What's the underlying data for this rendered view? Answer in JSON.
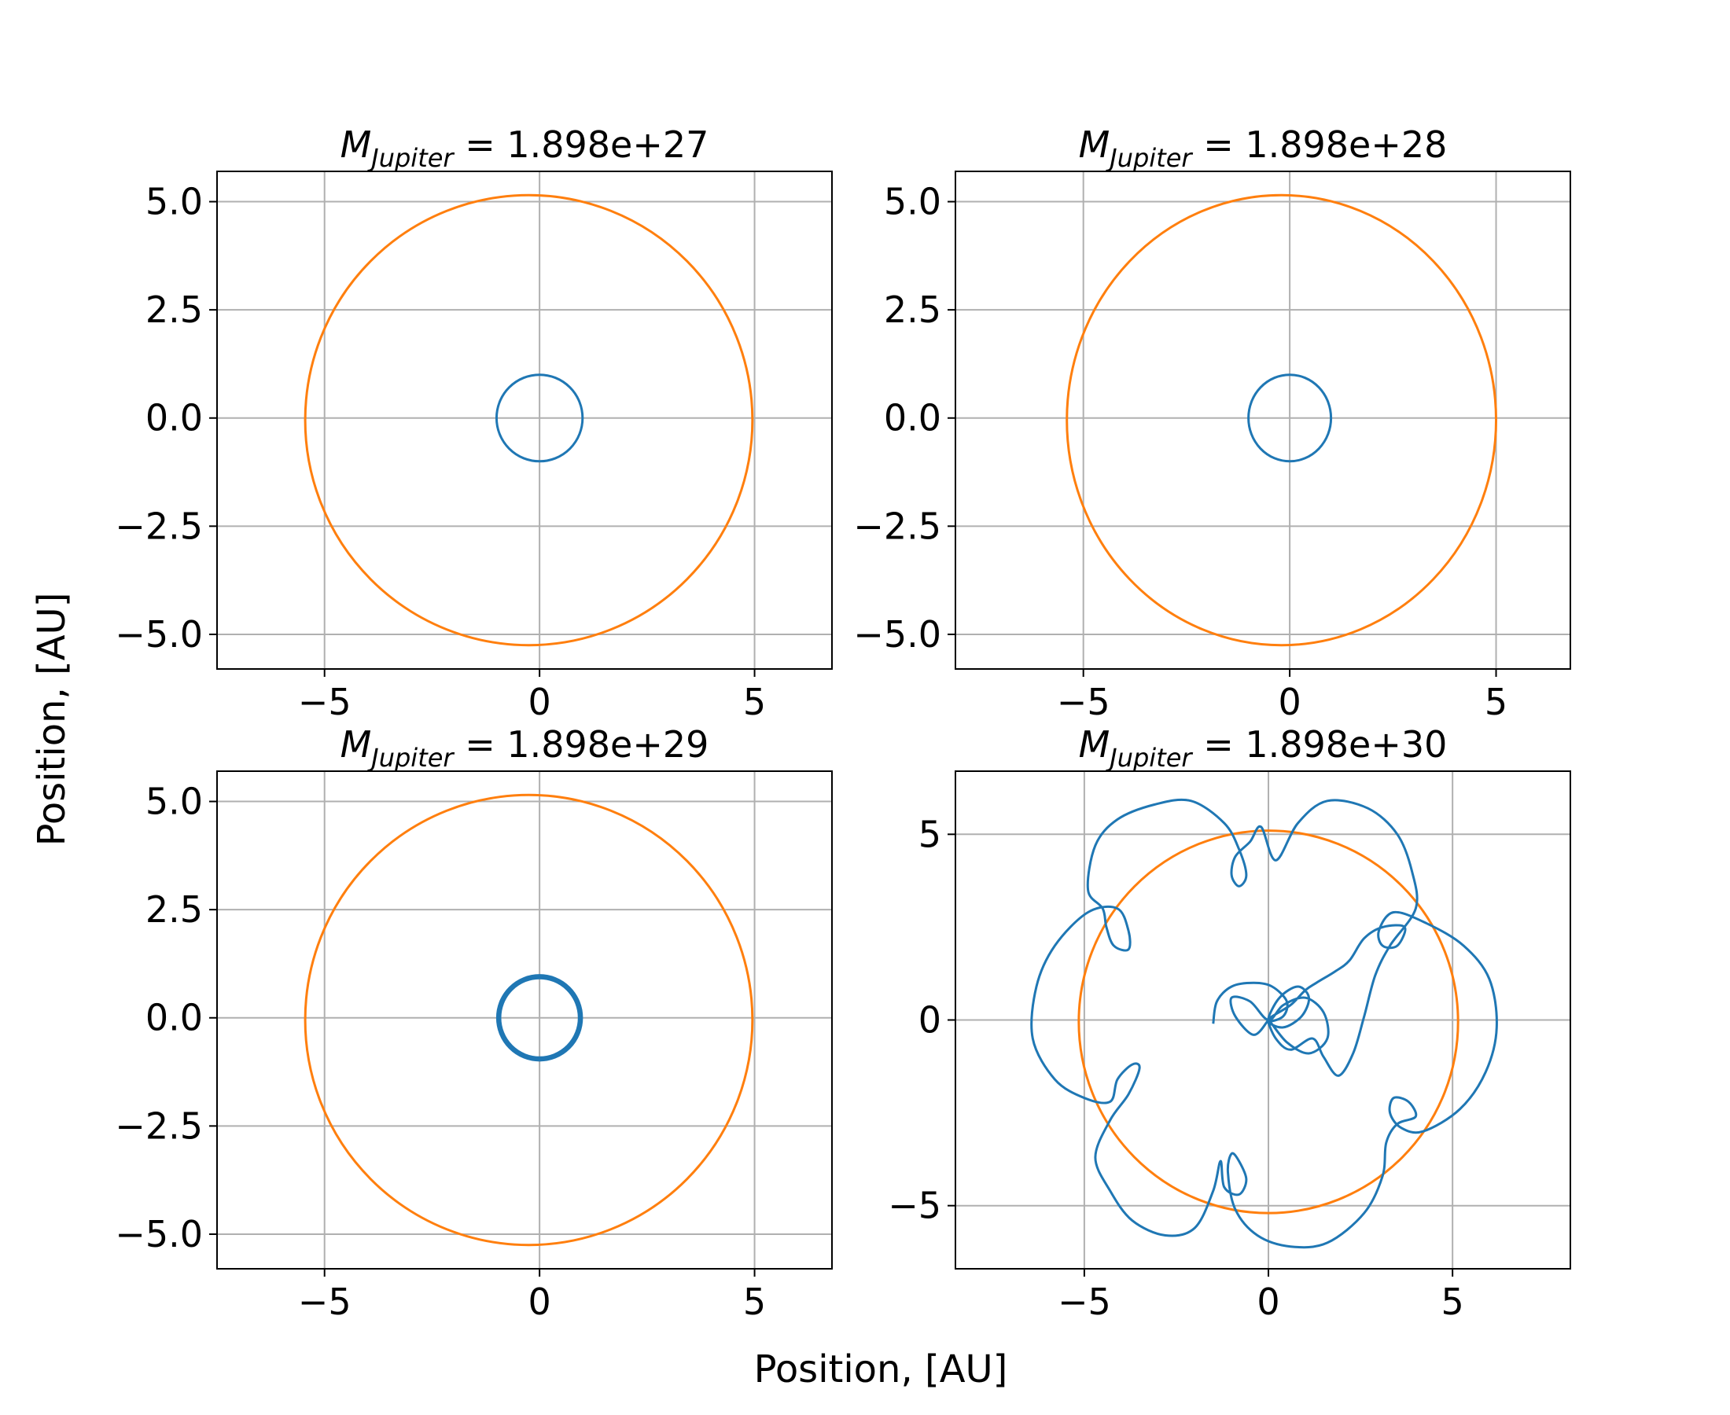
{
  "figure": {
    "xlabel": "Position, [AU]",
    "ylabel": "Position, [AU]",
    "title_symbol": "M",
    "title_subscript": "Jupiter",
    "colors": {
      "earth": "#1f77b4",
      "jupiter": "#ff7f0e",
      "grid": "#b0b0b0"
    }
  },
  "chart_data": [
    {
      "type": "line",
      "title_value": "= 1.898e+27",
      "xlim": [
        -7.5,
        6.8
      ],
      "ylim": [
        -5.8,
        5.7
      ],
      "xticks": [
        -5,
        0,
        5
      ],
      "xtick_labels": [
        "−5",
        "0",
        "5"
      ],
      "yticks": [
        5,
        2.5,
        0,
        -2.5,
        -5
      ],
      "ytick_labels": [
        "5.0",
        "2.5",
        "0.0",
        "−2.5",
        "−5.0"
      ],
      "grid": true,
      "series": [
        {
          "role": "jupiter",
          "shape": "circle",
          "center": [
            -0.25,
            -0.05
          ],
          "radius": 5.2
        },
        {
          "role": "earth",
          "shape": "circle",
          "center": [
            0,
            0
          ],
          "radius": 1.0
        }
      ]
    },
    {
      "type": "line",
      "title_value": "= 1.898e+28",
      "xlim": [
        -8.1,
        6.8
      ],
      "ylim": [
        -5.8,
        5.7
      ],
      "xticks": [
        -5,
        0,
        5
      ],
      "xtick_labels": [
        "−5",
        "0",
        "5"
      ],
      "yticks": [
        5,
        2.5,
        0,
        -2.5,
        -5
      ],
      "ytick_labels": [
        "5.0",
        "2.5",
        "0.0",
        "−2.5",
        "−5.0"
      ],
      "grid": true,
      "series": [
        {
          "role": "jupiter",
          "shape": "circle",
          "center": [
            -0.2,
            -0.05
          ],
          "radius": 5.2
        },
        {
          "role": "earth",
          "shape": "circle",
          "center": [
            0,
            0
          ],
          "radius": 1.0,
          "width_band": 0.05
        }
      ]
    },
    {
      "type": "line",
      "title_value": "= 1.898e+29",
      "xlim": [
        -7.5,
        6.8
      ],
      "ylim": [
        -5.8,
        5.7
      ],
      "xticks": [
        -5,
        0,
        5
      ],
      "xtick_labels": [
        "−5",
        "0",
        "5"
      ],
      "yticks": [
        5,
        2.5,
        0,
        -2.5,
        -5
      ],
      "ytick_labels": [
        "5.0",
        "2.5",
        "0.0",
        "−2.5",
        "−5.0"
      ],
      "grid": true,
      "series": [
        {
          "role": "jupiter",
          "shape": "circle",
          "center": [
            -0.25,
            -0.05
          ],
          "radius": 5.2
        },
        {
          "role": "earth",
          "shape": "circle",
          "center": [
            0,
            0
          ],
          "radius": 0.95,
          "width_band": 0.12
        }
      ]
    },
    {
      "type": "line",
      "title_value": "= 1.898e+30",
      "xlim": [
        -8.5,
        8.2
      ],
      "ylim": [
        -6.7,
        6.7
      ],
      "xticks": [
        -5,
        0,
        5
      ],
      "xtick_labels": [
        "−5",
        "0",
        "5"
      ],
      "yticks": [
        5,
        0,
        -5
      ],
      "ytick_labels": [
        "5",
        "0",
        "−5"
      ],
      "grid": true,
      "series": [
        {
          "role": "jupiter",
          "shape": "circle",
          "center": [
            0,
            -0.05
          ],
          "radius": 5.15
        },
        {
          "role": "earth",
          "shape": "path",
          "points": [
            [
              -1.5,
              -0.1
            ],
            [
              -1.4,
              0.5
            ],
            [
              -1.0,
              0.9
            ],
            [
              -0.4,
              1.0
            ],
            [
              0.1,
              0.9
            ],
            [
              0.5,
              0.5
            ],
            [
              0.4,
              0.1
            ],
            [
              0.0,
              0.0
            ],
            [
              0.3,
              0.6
            ],
            [
              0.8,
              0.9
            ],
            [
              1.1,
              0.6
            ],
            [
              0.9,
              0.1
            ],
            [
              0.4,
              -0.2
            ],
            [
              0.0,
              0.0
            ],
            [
              0.6,
              0.4
            ],
            [
              1.0,
              0.8
            ],
            [
              1.3,
              1.0
            ],
            [
              1.8,
              1.3
            ],
            [
              2.2,
              1.6
            ],
            [
              2.6,
              2.2
            ],
            [
              3.1,
              2.5
            ],
            [
              3.7,
              2.5
            ],
            [
              3.5,
              2.0
            ],
            [
              3.1,
              2.0
            ],
            [
              3.0,
              2.4
            ],
            [
              3.4,
              2.9
            ],
            [
              4.3,
              2.6
            ],
            [
              5.3,
              2.0
            ],
            [
              6.0,
              1.1
            ],
            [
              6.2,
              -0.2
            ],
            [
              5.9,
              -1.4
            ],
            [
              5.2,
              -2.4
            ],
            [
              4.2,
              -3.0
            ],
            [
              3.6,
              -2.9
            ],
            [
              3.3,
              -2.5
            ],
            [
              3.4,
              -2.1
            ],
            [
              3.8,
              -2.2
            ],
            [
              4.0,
              -2.6
            ],
            [
              3.5,
              -2.8
            ],
            [
              3.2,
              -3.3
            ],
            [
              3.1,
              -4.2
            ],
            [
              2.6,
              -5.2
            ],
            [
              1.6,
              -6.0
            ],
            [
              0.6,
              -6.1
            ],
            [
              -0.3,
              -5.8
            ],
            [
              -0.9,
              -5.1
            ],
            [
              -1.1,
              -4.1
            ],
            [
              -1.0,
              -3.6
            ],
            [
              -0.8,
              -3.8
            ],
            [
              -0.6,
              -4.3
            ],
            [
              -0.8,
              -4.7
            ],
            [
              -1.2,
              -4.5
            ],
            [
              -1.3,
              -3.8
            ],
            [
              -1.5,
              -4.6
            ],
            [
              -2.0,
              -5.6
            ],
            [
              -2.8,
              -5.8
            ],
            [
              -3.7,
              -5.4
            ],
            [
              -4.3,
              -4.6
            ],
            [
              -4.7,
              -3.7
            ],
            [
              -4.3,
              -2.7
            ],
            [
              -3.8,
              -2.0
            ],
            [
              -3.5,
              -1.3
            ],
            [
              -3.7,
              -1.2
            ],
            [
              -4.1,
              -1.6
            ],
            [
              -4.3,
              -2.2
            ],
            [
              -5.0,
              -2.1
            ],
            [
              -5.8,
              -1.6
            ],
            [
              -6.4,
              -0.5
            ],
            [
              -6.3,
              0.9
            ],
            [
              -5.8,
              2.0
            ],
            [
              -4.9,
              2.9
            ],
            [
              -4.1,
              3.0
            ],
            [
              -3.8,
              2.4
            ],
            [
              -3.8,
              1.9
            ],
            [
              -4.2,
              2.0
            ],
            [
              -4.4,
              2.5
            ],
            [
              -4.5,
              3.0
            ],
            [
              -4.9,
              3.5
            ],
            [
              -4.7,
              4.7
            ],
            [
              -4.1,
              5.4
            ],
            [
              -3.1,
              5.8
            ],
            [
              -2.1,
              5.9
            ],
            [
              -1.2,
              5.3
            ],
            [
              -0.8,
              4.6
            ],
            [
              -0.6,
              3.9
            ],
            [
              -0.8,
              3.6
            ],
            [
              -1.0,
              3.9
            ],
            [
              -0.9,
              4.4
            ],
            [
              -0.5,
              4.8
            ],
            [
              -0.2,
              5.2
            ],
            [
              0.2,
              4.3
            ],
            [
              0.8,
              5.3
            ],
            [
              1.6,
              5.9
            ],
            [
              2.7,
              5.7
            ],
            [
              3.5,
              5.0
            ],
            [
              3.9,
              4.0
            ],
            [
              4.0,
              3.0
            ],
            [
              3.3,
              2.0
            ],
            [
              2.9,
              1.2
            ],
            [
              2.6,
              0.1
            ],
            [
              2.3,
              -0.9
            ],
            [
              1.9,
              -1.5
            ],
            [
              1.5,
              -1.0
            ],
            [
              1.2,
              -0.5
            ],
            [
              0.6,
              -0.8
            ],
            [
              0.2,
              -0.5
            ],
            [
              0.0,
              0.0
            ],
            [
              0.5,
              -0.6
            ],
            [
              1.1,
              -0.9
            ],
            [
              1.6,
              -0.5
            ],
            [
              1.5,
              0.2
            ],
            [
              1.0,
              0.6
            ],
            [
              0.4,
              0.4
            ],
            [
              0.0,
              0.0
            ],
            [
              -0.5,
              0.5
            ],
            [
              -1.0,
              0.6
            ],
            [
              -0.9,
              0.1
            ],
            [
              -0.4,
              -0.4
            ],
            [
              0.0,
              0.0
            ]
          ]
        }
      ]
    }
  ]
}
